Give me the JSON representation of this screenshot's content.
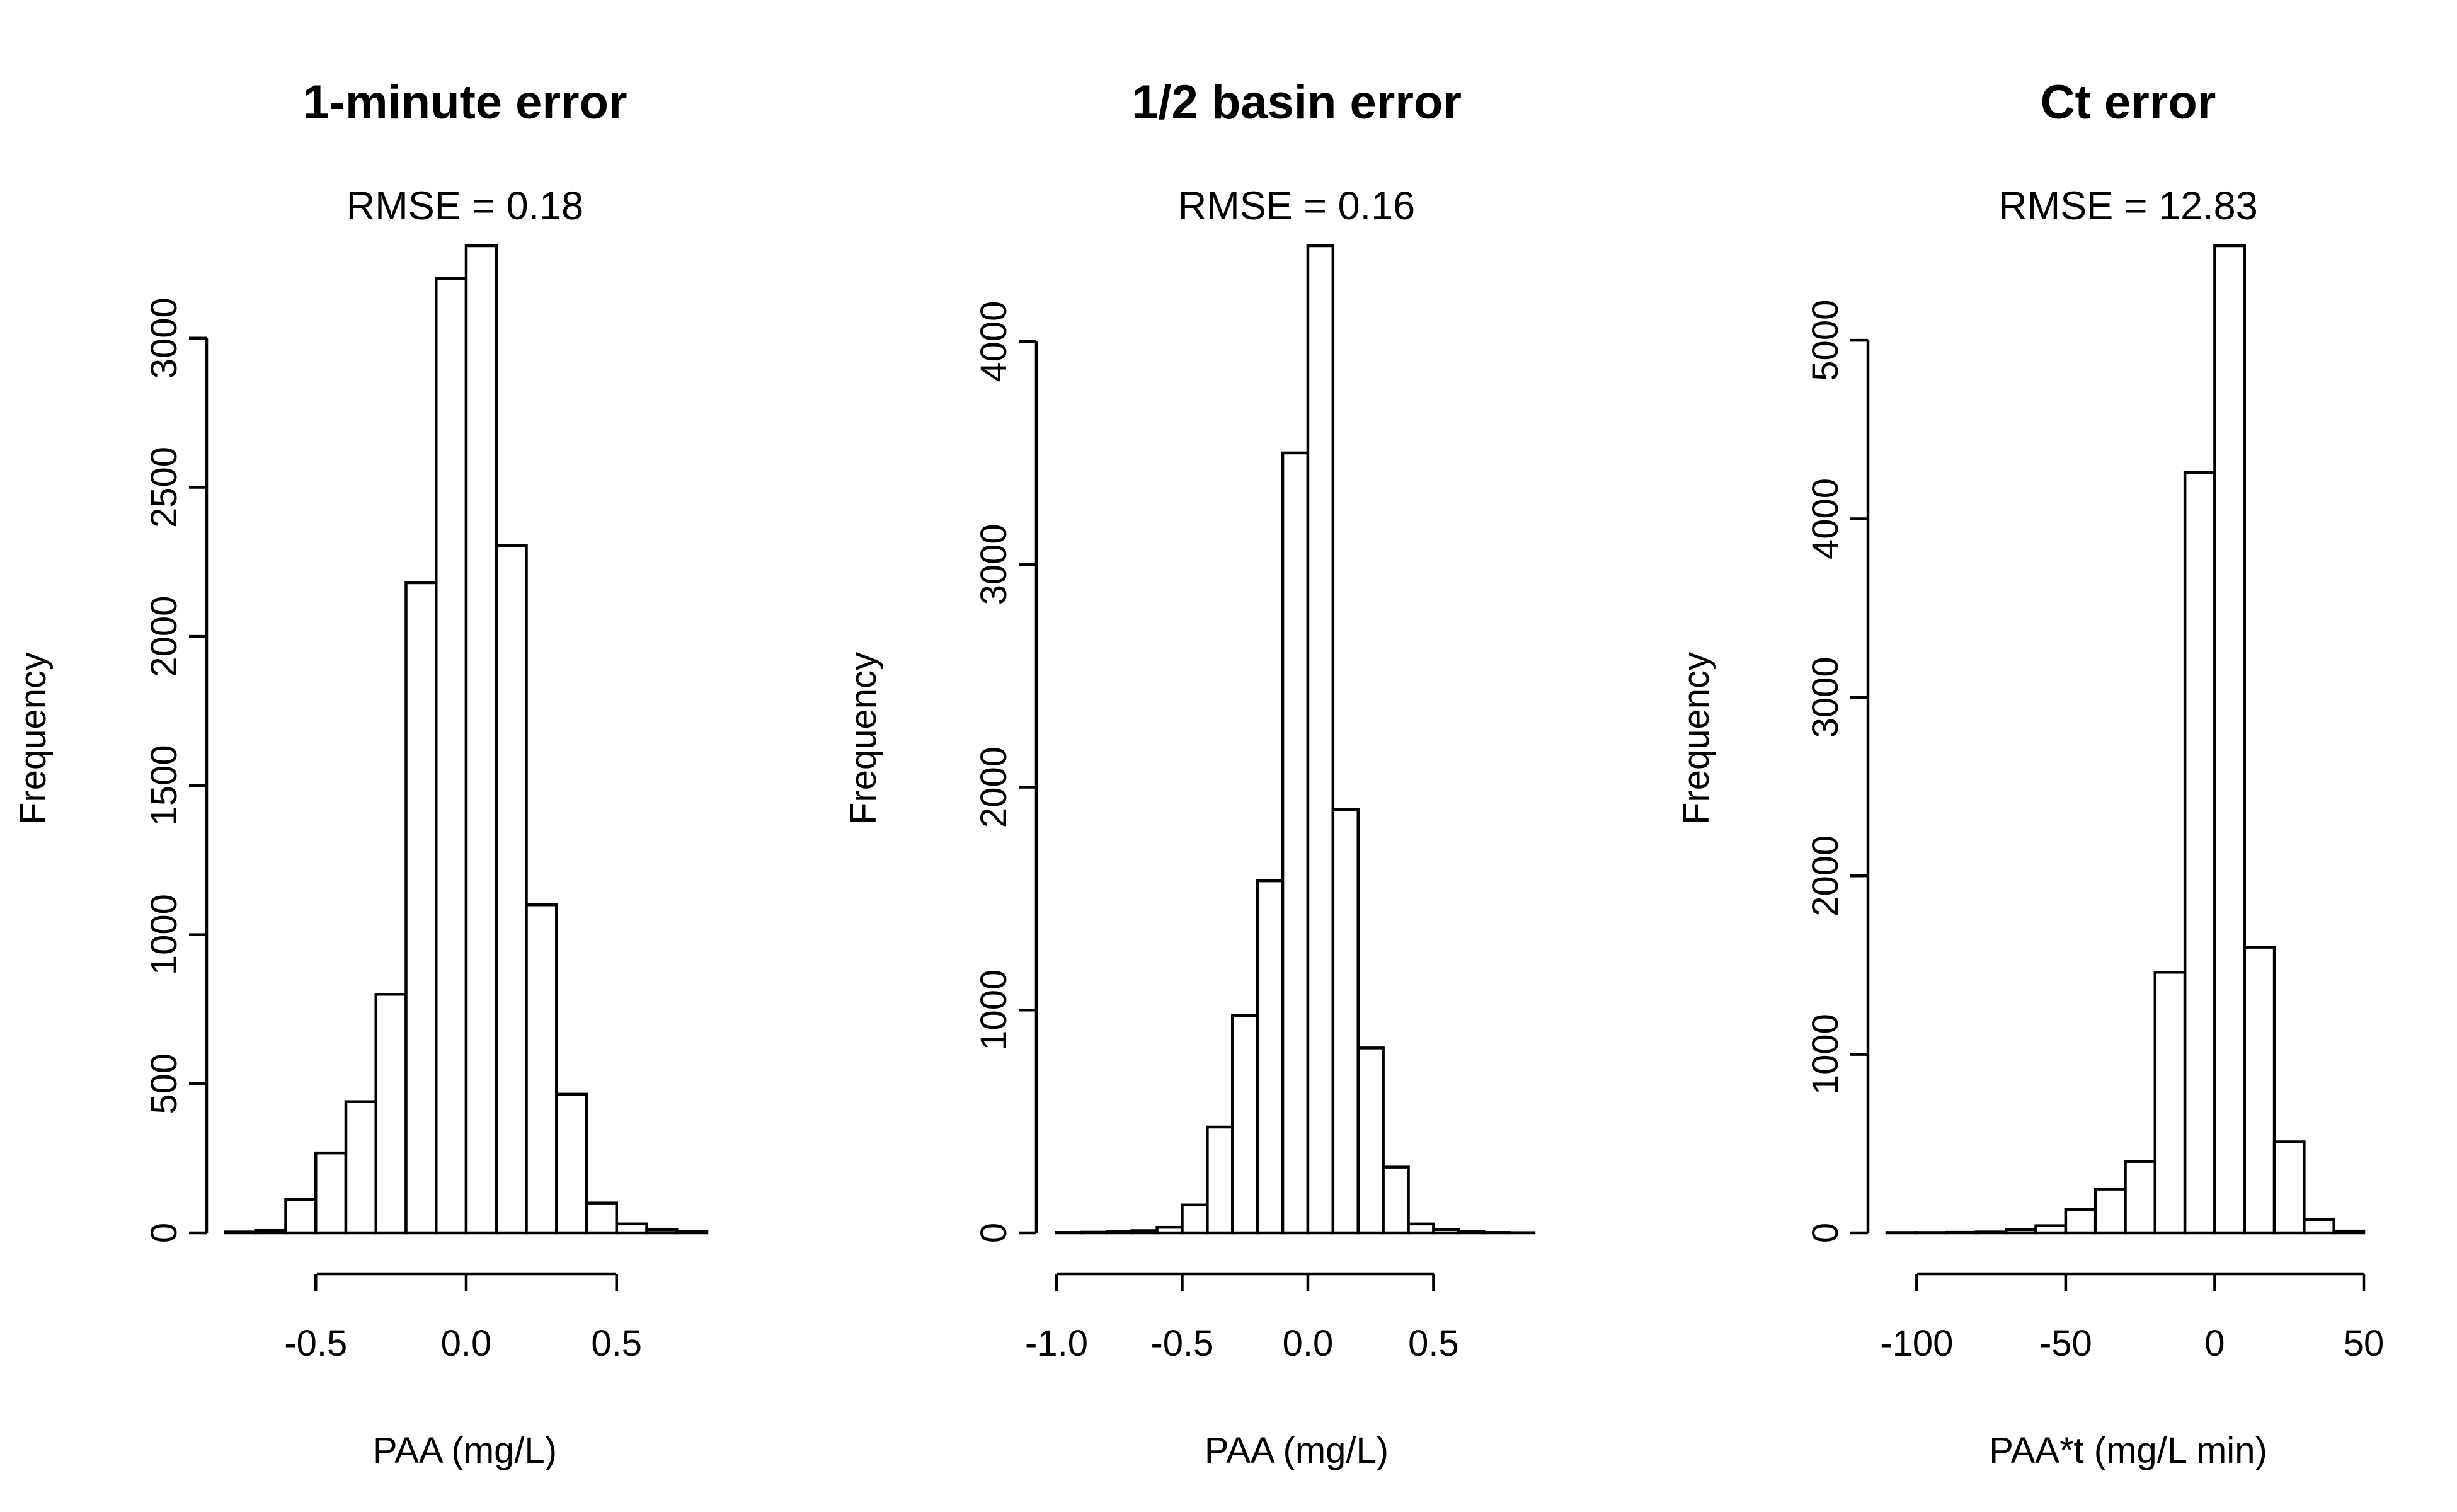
{
  "chart_data": [
    {
      "type": "bar",
      "title": "1-minute error",
      "subtitle": "RMSE = 0.18",
      "xlabel": "PAA (mg/L)",
      "ylabel": "Frequency",
      "bin_edges": [
        -0.8,
        -0.7,
        -0.6,
        -0.5,
        -0.4,
        -0.3,
        -0.2,
        -0.1,
        0.0,
        0.1,
        0.2,
        0.3,
        0.4,
        0.5,
        0.6,
        0.7,
        0.8
      ],
      "values": [
        3,
        8,
        112,
        268,
        440,
        800,
        2180,
        3200,
        3310,
        2305,
        1100,
        465,
        100,
        30,
        10,
        4
      ],
      "xlim": [
        -0.8,
        0.8
      ],
      "ylim": [
        0,
        3310
      ],
      "x_ticks": [
        -0.5,
        0.0,
        0.5
      ],
      "x_tick_labels": [
        "-0.5",
        "0.0",
        "0.5"
      ],
      "y_ticks": [
        0,
        500,
        1000,
        1500,
        2000,
        2500,
        3000
      ],
      "y_tick_labels": [
        "0",
        "500",
        "1000",
        "1500",
        "2000",
        "2500",
        "3000"
      ],
      "grid": false
    },
    {
      "type": "bar",
      "title": "1/2 basin error",
      "subtitle": "RMSE = 0.16",
      "xlabel": "PAA (mg/L)",
      "ylabel": "Frequency",
      "bin_edges": [
        -1.0,
        -0.9,
        -0.8,
        -0.7,
        -0.6,
        -0.5,
        -0.4,
        -0.3,
        -0.2,
        -0.1,
        0.0,
        0.1,
        0.2,
        0.3,
        0.4,
        0.5,
        0.6,
        0.7,
        0.8,
        0.9
      ],
      "values": [
        2,
        3,
        5,
        10,
        25,
        125,
        475,
        975,
        1580,
        3500,
        4430,
        1900,
        830,
        295,
        40,
        15,
        5,
        2,
        1
      ],
      "xlim": [
        -1.0,
        0.9
      ],
      "ylim": [
        0,
        4430
      ],
      "x_ticks": [
        -1.0,
        -0.5,
        0.0,
        0.5
      ],
      "x_tick_labels": [
        "-1.0",
        "-0.5",
        "0.0",
        "0.5"
      ],
      "y_ticks": [
        0,
        1000,
        2000,
        3000,
        4000
      ],
      "y_tick_labels": [
        "0",
        "1000",
        "2000",
        "3000",
        "4000"
      ],
      "grid": false
    },
    {
      "type": "bar",
      "title": "Ct error",
      "subtitle": "RMSE = 12.83",
      "xlabel": "PAA*t (mg/L min)",
      "ylabel": "Frequency",
      "bin_edges": [
        -110,
        -100,
        -90,
        -80,
        -70,
        -60,
        -50,
        -40,
        -30,
        -20,
        -10,
        0,
        10,
        20,
        30,
        40,
        50
      ],
      "values": [
        2,
        2,
        3,
        5,
        18,
        40,
        130,
        245,
        400,
        1460,
        4260,
        5530,
        1600,
        510,
        75,
        10
      ],
      "xlim": [
        -110,
        50
      ],
      "ylim": [
        0,
        5530
      ],
      "x_ticks": [
        -100,
        -50,
        0,
        50
      ],
      "x_tick_labels": [
        "-100",
        "-50",
        "0",
        "50"
      ],
      "y_ticks": [
        0,
        1000,
        2000,
        3000,
        4000,
        5000
      ],
      "y_tick_labels": [
        "0",
        "1000",
        "2000",
        "3000",
        "4000",
        "5000"
      ],
      "grid": false
    }
  ]
}
